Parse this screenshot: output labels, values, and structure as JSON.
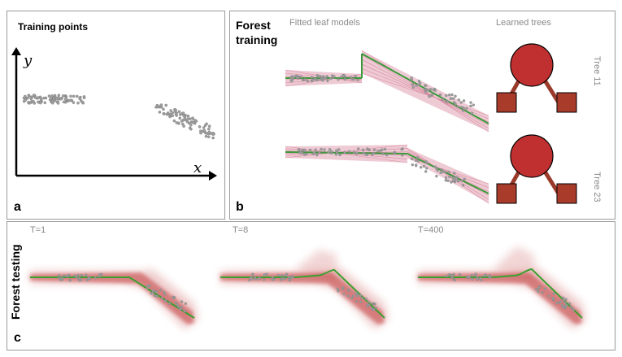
{
  "panel_a": {
    "letter": "a",
    "title": "Training points",
    "title_color": "#3a4a6a",
    "y_axis_label": "y",
    "x_axis_label": "x",
    "axis_label_color": "#3a3aa0"
  },
  "panel_b": {
    "letter": "b",
    "title": "Forest training",
    "subtitle_left": "Fitted leaf models",
    "subtitle_right": "Learned trees",
    "tree_labels": [
      "Tree 11",
      "Tree 23"
    ],
    "node_color": "#c03030",
    "leaf_color": "#a83b2a",
    "edge_color": "#9a3a2a",
    "fit_color": "#3a9a3a",
    "uncertainty_color": "#e0a0b0"
  },
  "panel_c": {
    "letter": "c",
    "title": "Forest testing",
    "labels": [
      "T=1",
      "T=8",
      "T=400"
    ],
    "density_color": "#b81e1e",
    "mean_color": "#3aa030"
  },
  "point_color": "#a0a0a0"
}
